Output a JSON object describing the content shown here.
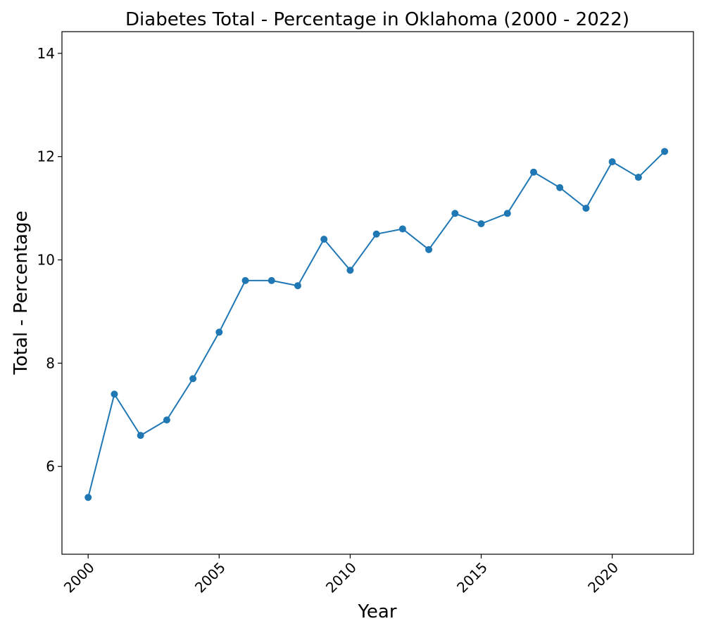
{
  "chart_data": {
    "type": "line",
    "title": "Diabetes Total - Percentage in Oklahoma (2000 - 2022)",
    "xlabel": "Year",
    "ylabel": "Total - Percentage",
    "xlim": [
      1999,
      2023.1
    ],
    "ylim": [
      4.3,
      14.42
    ],
    "x_ticks": [
      2000,
      2005,
      2010,
      2015,
      2020
    ],
    "y_ticks": [
      6,
      8,
      10,
      12,
      14
    ],
    "grid": false,
    "line_color": "#1f77b4",
    "series": [
      {
        "x": [
          2000,
          2001,
          2002,
          2003,
          2004,
          2005,
          2006,
          2007,
          2008,
          2009,
          2010,
          2011,
          2012,
          2013,
          2014,
          2015,
          2016,
          2017,
          2018,
          2019,
          2020,
          2021,
          2022
        ],
        "values": [
          5.4,
          7.4,
          6.6,
          6.9,
          7.7,
          8.6,
          9.6,
          9.6,
          9.5,
          10.4,
          9.8,
          10.5,
          10.6,
          10.2,
          10.9,
          10.7,
          10.9,
          11.7,
          11.4,
          11.0,
          11.9,
          11.6,
          12.1
        ]
      }
    ]
  }
}
